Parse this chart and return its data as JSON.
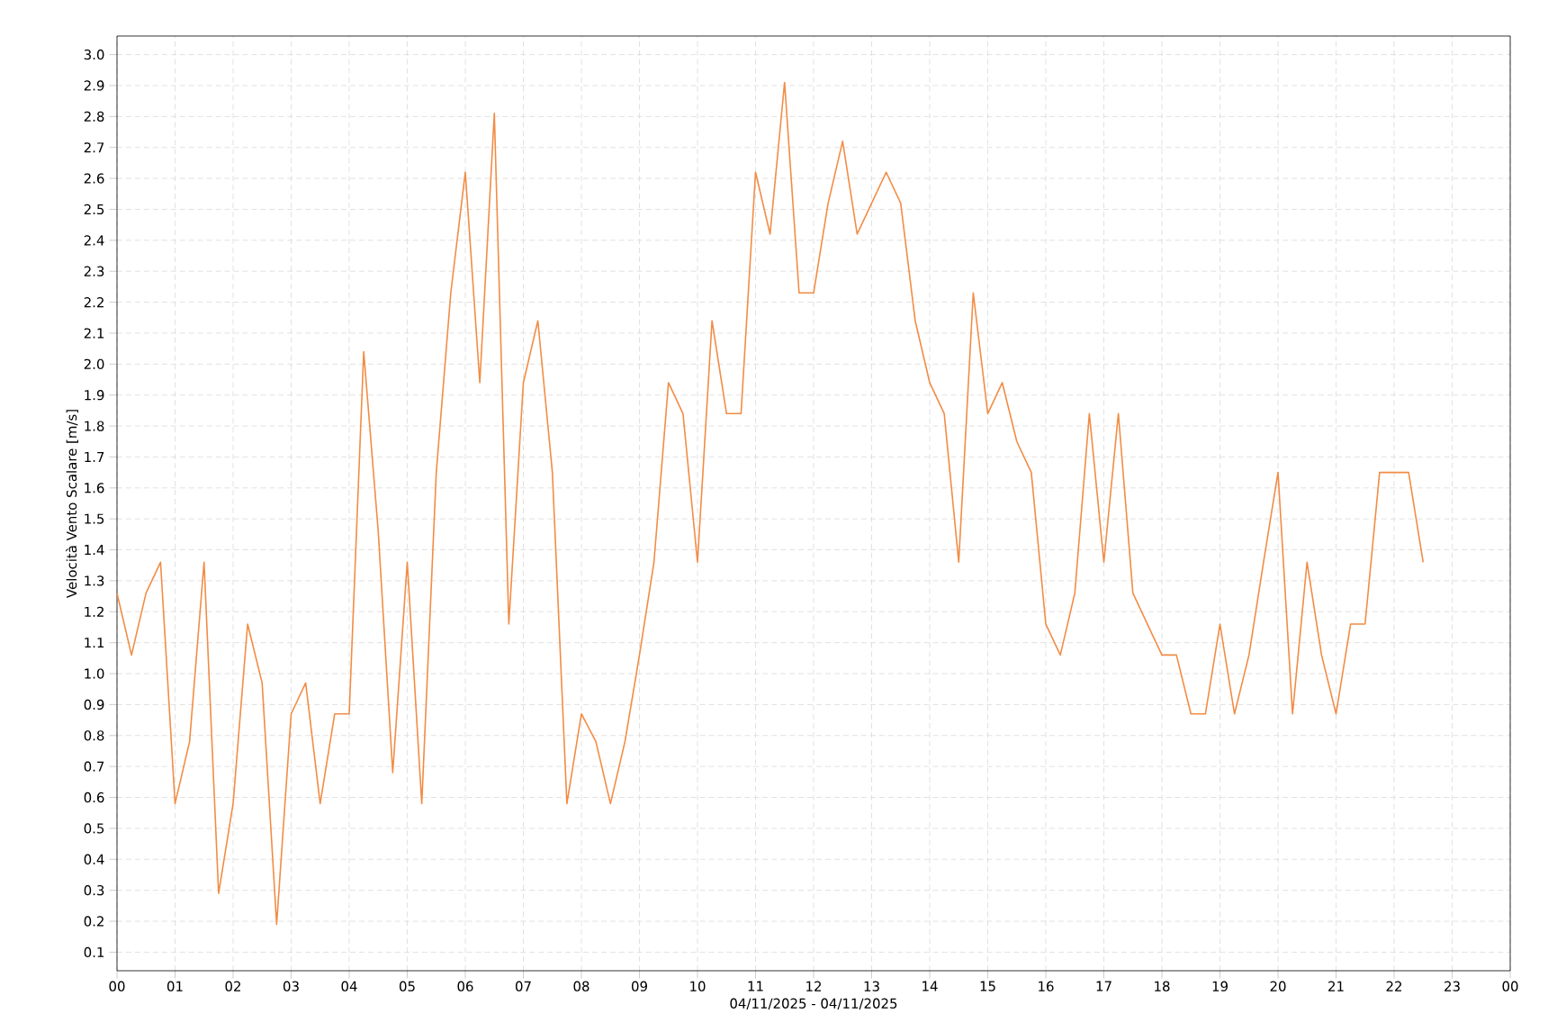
{
  "chart_data": {
    "type": "line",
    "xlabel": "04/11/2025 - 04/11/2025",
    "ylabel": "Velocità Vento Scalare [m/s]",
    "x": [
      0,
      0.25,
      0.5,
      0.75,
      1,
      1.25,
      1.5,
      1.75,
      2,
      2.25,
      2.5,
      2.75,
      3,
      3.25,
      3.5,
      3.75,
      4,
      4.25,
      4.5,
      4.75,
      5,
      5.25,
      5.5,
      5.75,
      6,
      6.25,
      6.5,
      6.75,
      7,
      7.25,
      7.5,
      7.75,
      8,
      8.25,
      8.5,
      8.75,
      9,
      9.25,
      9.5,
      9.75,
      10,
      10.25,
      10.5,
      10.75,
      11,
      11.25,
      11.5,
      11.75,
      12,
      12.25,
      12.5,
      12.75,
      13,
      13.25,
      13.5,
      13.75,
      14,
      14.25,
      14.5,
      14.75,
      15,
      15.25,
      15.5,
      15.75,
      16,
      16.25,
      16.5,
      16.75,
      17,
      17.25,
      17.5,
      17.75,
      18,
      18.25,
      18.5,
      18.75,
      19,
      19.25,
      19.5,
      19.75,
      20,
      20.25,
      20.5,
      20.75,
      21,
      21.25,
      21.5,
      21.75,
      22,
      22.25,
      22.5
    ],
    "values": [
      1.26,
      1.06,
      1.26,
      1.36,
      0.58,
      0.78,
      1.36,
      0.29,
      0.58,
      1.16,
      0.97,
      0.19,
      0.87,
      0.97,
      0.58,
      0.87,
      0.87,
      2.04,
      1.46,
      0.68,
      1.36,
      0.58,
      1.65,
      2.23,
      2.62,
      1.94,
      2.81,
      1.16,
      1.94,
      2.14,
      1.65,
      0.58,
      0.87,
      0.78,
      0.58,
      0.78,
      1.06,
      1.36,
      1.94,
      1.84,
      1.36,
      2.14,
      1.84,
      1.84,
      2.62,
      2.42,
      2.91,
      2.23,
      2.23,
      2.52,
      2.72,
      2.42,
      2.52,
      2.62,
      2.52,
      2.14,
      1.94,
      1.84,
      1.36,
      2.23,
      1.84,
      1.94,
      1.75,
      1.65,
      1.16,
      1.06,
      1.26,
      1.84,
      1.36,
      1.84,
      1.26,
      1.16,
      1.06,
      1.06,
      0.87,
      0.87,
      1.16,
      0.87,
      1.06,
      1.36,
      1.65,
      0.87,
      1.36,
      1.06,
      0.87,
      1.16,
      1.16,
      1.65,
      1.65,
      1.65,
      1.36
    ],
    "color": "#f28c45",
    "xlim": [
      0,
      24
    ],
    "xticks": [
      {
        "value": 0,
        "label": "00"
      },
      {
        "value": 1,
        "label": "01"
      },
      {
        "value": 2,
        "label": "02"
      },
      {
        "value": 3,
        "label": "03"
      },
      {
        "value": 4,
        "label": "04"
      },
      {
        "value": 5,
        "label": "05"
      },
      {
        "value": 6,
        "label": "06"
      },
      {
        "value": 7,
        "label": "07"
      },
      {
        "value": 8,
        "label": "08"
      },
      {
        "value": 9,
        "label": "09"
      },
      {
        "value": 10,
        "label": "10"
      },
      {
        "value": 11,
        "label": "11"
      },
      {
        "value": 12,
        "label": "12"
      },
      {
        "value": 13,
        "label": "13"
      },
      {
        "value": 14,
        "label": "14"
      },
      {
        "value": 15,
        "label": "15"
      },
      {
        "value": 16,
        "label": "16"
      },
      {
        "value": 17,
        "label": "17"
      },
      {
        "value": 18,
        "label": "18"
      },
      {
        "value": 19,
        "label": "19"
      },
      {
        "value": 20,
        "label": "20"
      },
      {
        "value": 21,
        "label": "21"
      },
      {
        "value": 22,
        "label": "22"
      },
      {
        "value": 23,
        "label": "23"
      },
      {
        "value": 24,
        "label": "00"
      }
    ],
    "ylim": [
      0.04,
      3.06
    ],
    "yticks": [
      0.1,
      0.2,
      0.3,
      0.4,
      0.5,
      0.6,
      0.7,
      0.8,
      0.9,
      {
        "value": 1,
        "label": "1.0"
      },
      1.1,
      1.2,
      1.3,
      1.4,
      1.5,
      1.6,
      1.7,
      1.8,
      1.9,
      {
        "value": 2,
        "label": "2.0"
      },
      2.1,
      2.2,
      2.3,
      2.4,
      2.5,
      2.6,
      2.7,
      2.8,
      2.9,
      {
        "value": 3,
        "label": "3.0"
      }
    ],
    "grid": true,
    "marker": "none",
    "line_style": "solid"
  }
}
